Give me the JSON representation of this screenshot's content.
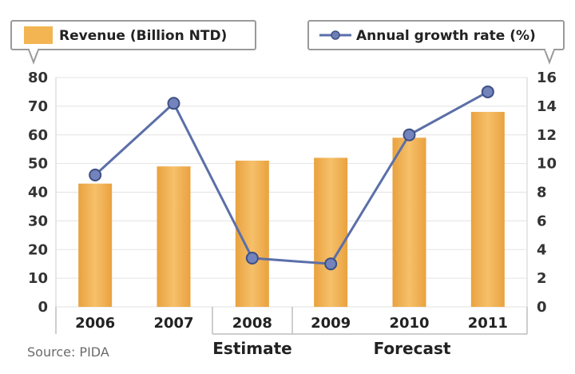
{
  "chart_data": {
    "type": "bar+line",
    "categories": [
      "2006",
      "2007",
      "2008",
      "2009",
      "2010",
      "2011"
    ],
    "series": [
      {
        "name": "Revenue (Billion NTD)",
        "type": "bar",
        "axis": "left",
        "color": "#F3B552",
        "values": [
          43,
          49,
          51,
          52,
          59,
          68
        ]
      },
      {
        "name": "Annual growth rate (%)",
        "type": "line",
        "axis": "right",
        "color": "#5B6FA8",
        "values": [
          9.2,
          14.2,
          3.4,
          3.0,
          12.0,
          15.0
        ]
      }
    ],
    "y_left": {
      "min": 0,
      "max": 80,
      "ticks": [
        "0",
        "10",
        "20",
        "30",
        "40",
        "50",
        "60",
        "70",
        "80"
      ]
    },
    "y_right": {
      "min": 0,
      "max": 16,
      "ticks": [
        "0",
        "2",
        "4",
        "6",
        "8",
        "10",
        "12",
        "14",
        "16"
      ]
    },
    "x_tick_labels": [
      "2006",
      "2007",
      "2008",
      "2009",
      "2010",
      "2011"
    ],
    "groups": [
      {
        "label": "Estimate",
        "from": 2,
        "to": 2
      },
      {
        "label": "Forecast",
        "from": 3,
        "to": 5
      }
    ],
    "legend": [
      "Revenue (Billion NTD)",
      "Annual growth rate (%)"
    ],
    "grid": true,
    "source": "Source: PIDA"
  }
}
